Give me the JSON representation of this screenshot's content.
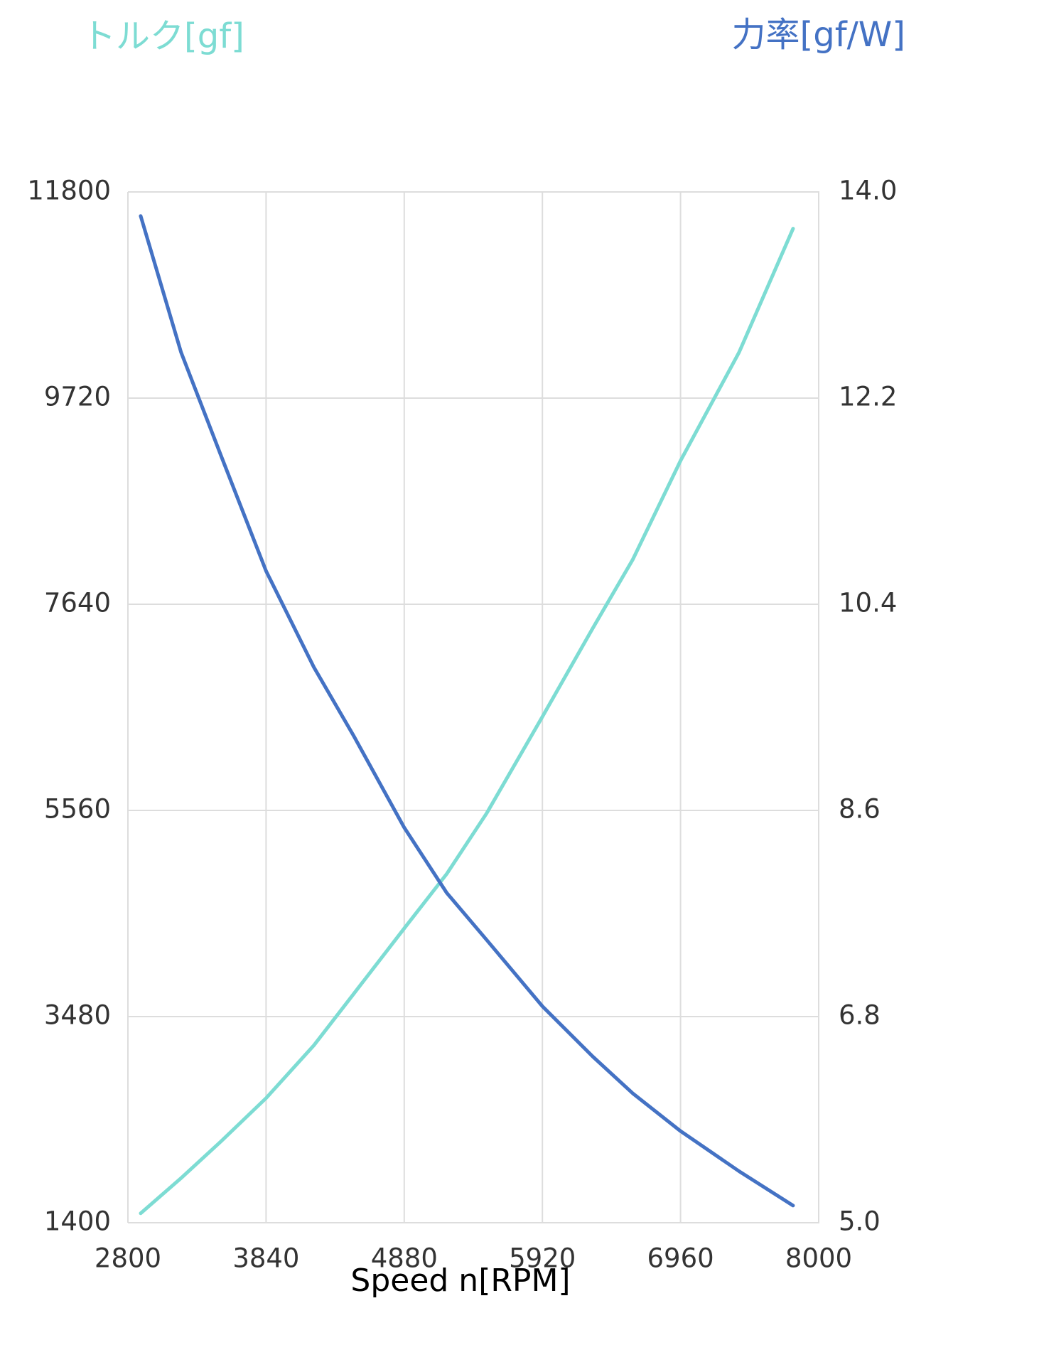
{
  "chart_data": {
    "type": "line",
    "xlabel": "Speed n[RPM]",
    "x": [
      2896,
      3200,
      3500,
      3840,
      4200,
      4500,
      4880,
      5200,
      5500,
      5920,
      6300,
      6600,
      6960,
      7400,
      7807
    ],
    "series": [
      {
        "name": "トルク[gf]",
        "color": "#7ddcd3",
        "values": [
          1495,
          1850,
          2220,
          2657,
          3190,
          3710,
          4370,
          4920,
          5530,
          6505,
          7400,
          8090,
          9088,
          10180,
          11430
        ]
      },
      {
        "name": "力率[gf/W]",
        "color": "#4472c4",
        "axis": "y2",
        "values": [
          13.79,
          12.6,
          11.7,
          10.69,
          9.85,
          9.25,
          8.45,
          7.88,
          7.47,
          6.89,
          6.45,
          6.13,
          5.8,
          5.45,
          5.15
        ]
      }
    ],
    "xlim": [
      2800,
      8000
    ],
    "xticks": [
      2800,
      3840,
      4880,
      5920,
      6960,
      8000
    ],
    "ylim": [
      1400,
      11800
    ],
    "yticks": [
      1400,
      3480,
      5560,
      7640,
      9720,
      11800
    ],
    "y2lim": [
      5,
      14
    ],
    "y2ticks": [
      {
        "value": 5,
        "label": "5.0"
      },
      6.8,
      8.6,
      10.4,
      12.2,
      {
        "value": 14,
        "label": "14.0"
      }
    ],
    "grid": true
  }
}
